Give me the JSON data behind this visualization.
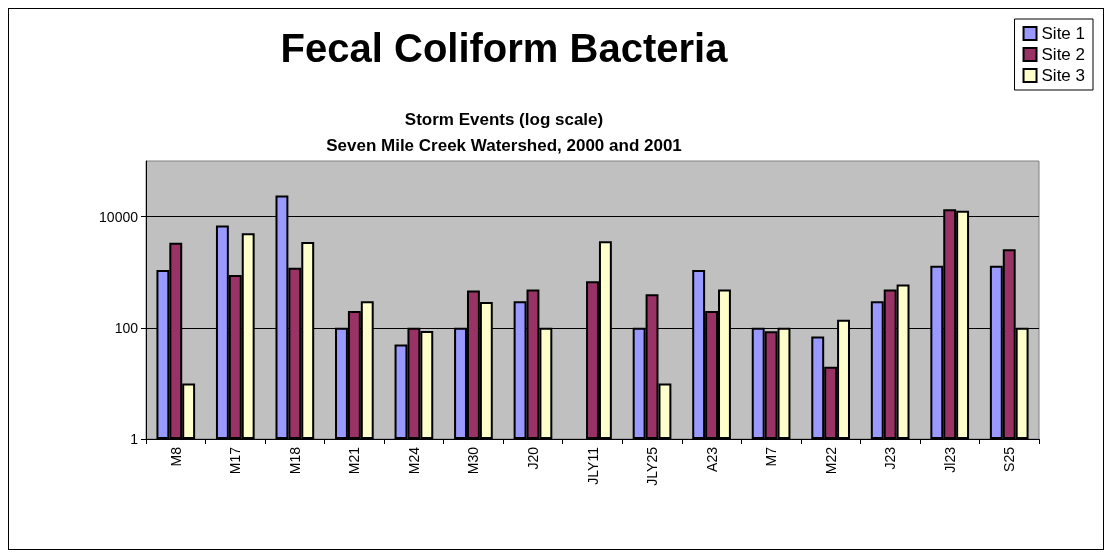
{
  "chart_data": {
    "type": "bar",
    "title": "Fecal Coliform Bacteria",
    "subtitle": "Storm Events (log scale)\nSeven Mile Creek Watershed, 2000 and 2001",
    "categories": [
      "M8",
      "M17",
      "M18",
      "M21",
      "M24",
      "M30",
      "J20",
      "JLY11",
      "JLY25",
      "A23",
      "M7",
      "M22",
      "J23",
      "Jl23",
      "S25"
    ],
    "series": [
      {
        "name": "Site 1",
        "color": "#9999ff",
        "values": [
          1100,
          6900,
          24000,
          100,
          50,
          100,
          300,
          null,
          100,
          1100,
          100,
          70,
          300,
          1300,
          1300
        ]
      },
      {
        "name": "Site 2",
        "color": "#993366",
        "values": [
          3400,
          890,
          1200,
          200,
          100,
          470,
          490,
          690,
          400,
          200,
          87,
          20,
          490,
          13500,
          2600
        ]
      },
      {
        "name": "Site 3",
        "color": "#ffffcc",
        "values": [
          10,
          5000,
          3500,
          300,
          88,
          290,
          100,
          3600,
          10,
          490,
          100,
          140,
          600,
          12700,
          100
        ]
      }
    ],
    "log": true,
    "ylim": [
      1,
      100000
    ],
    "yticks": [
      1,
      100,
      10000
    ],
    "grid": "y",
    "legend": "top right"
  }
}
